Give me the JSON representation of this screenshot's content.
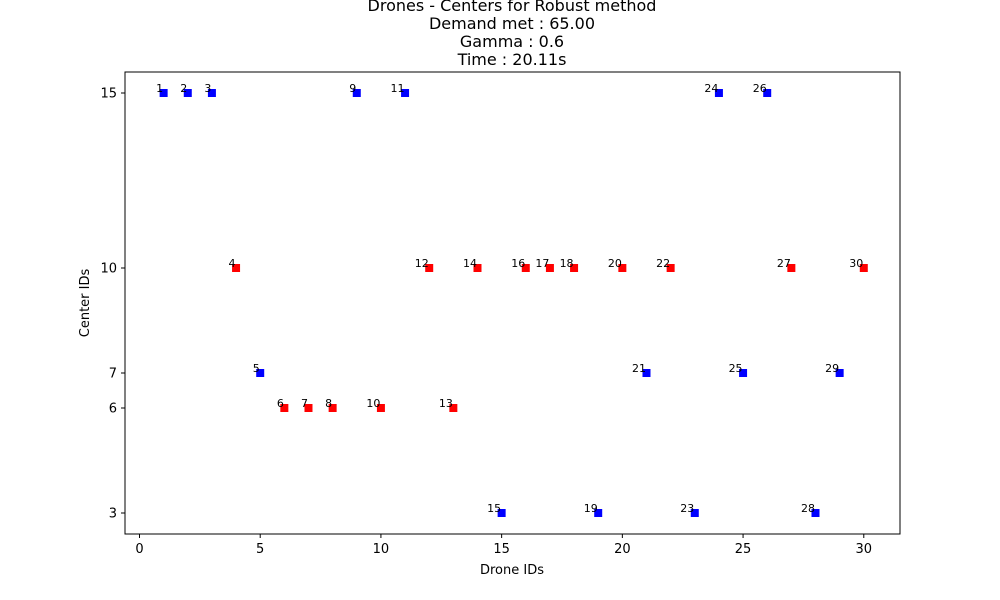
{
  "chart_data": {
    "type": "scatter",
    "title_lines": [
      "Drones - Centers for Robust method",
      "Demand met : 65.00",
      "Gamma : 0.6",
      "Time : 20.11s"
    ],
    "xlabel": "Drone IDs",
    "ylabel": "Center IDs",
    "xlim": [
      -0.6,
      31.5
    ],
    "ylim": [
      2.4,
      15.6
    ],
    "xticks": [
      0,
      5,
      10,
      15,
      20,
      25,
      30
    ],
    "yticks": [
      3,
      6,
      7,
      10,
      15
    ],
    "grid": false,
    "marker": "square",
    "colors": {
      "blue": "#0000ff",
      "red": "#ff0000"
    },
    "points": [
      {
        "x": 1,
        "y": 15,
        "label": "1",
        "color": "blue"
      },
      {
        "x": 2,
        "y": 15,
        "label": "2",
        "color": "blue"
      },
      {
        "x": 3,
        "y": 15,
        "label": "3",
        "color": "blue"
      },
      {
        "x": 4,
        "y": 10,
        "label": "4",
        "color": "red"
      },
      {
        "x": 5,
        "y": 7,
        "label": "5",
        "color": "blue"
      },
      {
        "x": 6,
        "y": 6,
        "label": "6",
        "color": "red"
      },
      {
        "x": 7,
        "y": 6,
        "label": "7",
        "color": "red"
      },
      {
        "x": 8,
        "y": 6,
        "label": "8",
        "color": "red"
      },
      {
        "x": 9,
        "y": 15,
        "label": "9",
        "color": "blue"
      },
      {
        "x": 10,
        "y": 6,
        "label": "10",
        "color": "red"
      },
      {
        "x": 11,
        "y": 15,
        "label": "11",
        "color": "blue"
      },
      {
        "x": 12,
        "y": 10,
        "label": "12",
        "color": "red"
      },
      {
        "x": 13,
        "y": 6,
        "label": "13",
        "color": "red"
      },
      {
        "x": 14,
        "y": 10,
        "label": "14",
        "color": "red"
      },
      {
        "x": 15,
        "y": 3,
        "label": "15",
        "color": "blue"
      },
      {
        "x": 16,
        "y": 10,
        "label": "16",
        "color": "red"
      },
      {
        "x": 17,
        "y": 10,
        "label": "17",
        "color": "red"
      },
      {
        "x": 18,
        "y": 10,
        "label": "18",
        "color": "red"
      },
      {
        "x": 19,
        "y": 3,
        "label": "19",
        "color": "blue"
      },
      {
        "x": 20,
        "y": 10,
        "label": "20",
        "color": "red"
      },
      {
        "x": 21,
        "y": 7,
        "label": "21",
        "color": "blue"
      },
      {
        "x": 22,
        "y": 10,
        "label": "22",
        "color": "red"
      },
      {
        "x": 23,
        "y": 3,
        "label": "23",
        "color": "blue"
      },
      {
        "x": 24,
        "y": 15,
        "label": "24",
        "color": "blue"
      },
      {
        "x": 25,
        "y": 7,
        "label": "25",
        "color": "blue"
      },
      {
        "x": 26,
        "y": 15,
        "label": "26",
        "color": "blue"
      },
      {
        "x": 27,
        "y": 10,
        "label": "27",
        "color": "red"
      },
      {
        "x": 28,
        "y": 3,
        "label": "28",
        "color": "blue"
      },
      {
        "x": 29,
        "y": 7,
        "label": "29",
        "color": "blue"
      },
      {
        "x": 30,
        "y": 10,
        "label": "30",
        "color": "red"
      }
    ]
  }
}
